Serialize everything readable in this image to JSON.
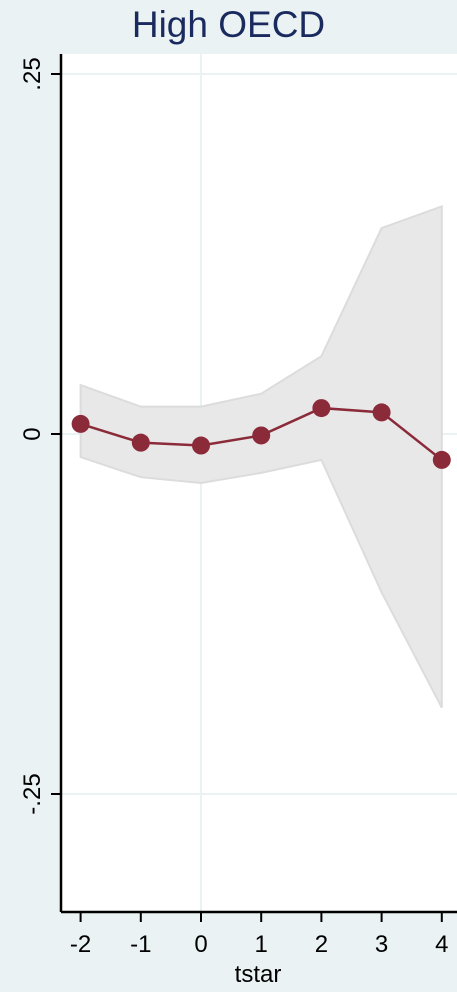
{
  "chart_data": {
    "type": "line",
    "title": "High OECD",
    "xlabel": "tstar",
    "ylabel": "",
    "x": [
      -2,
      -1,
      0,
      1,
      2,
      3,
      4
    ],
    "x_tick_labels": [
      "-2",
      "-1",
      "0",
      "1",
      "2",
      "3",
      "4"
    ],
    "y_ticks": [
      0.25,
      0,
      -0.25
    ],
    "y_tick_labels": [
      ".25",
      "0",
      "-.25"
    ],
    "xlim": [
      -2.35,
      4.2
    ],
    "ylim": [
      -0.33,
      0.26
    ],
    "series": [
      {
        "type": "line-markers",
        "y": [
          0.007,
          -0.006,
          -0.008,
          -0.001,
          0.018,
          0.015,
          -0.018
        ],
        "color": "#8b2b3a"
      },
      {
        "type": "confidence-band",
        "upper": [
          0.034,
          0.019,
          0.019,
          0.028,
          0.054,
          0.143,
          0.158
        ],
        "lower": [
          -0.016,
          -0.03,
          -0.034,
          -0.027,
          -0.018,
          -0.11,
          -0.19
        ],
        "color": "#e8e8e8"
      }
    ],
    "grid": true,
    "reference_lines": {
      "x": 0,
      "y": 0
    },
    "legend": "none"
  }
}
